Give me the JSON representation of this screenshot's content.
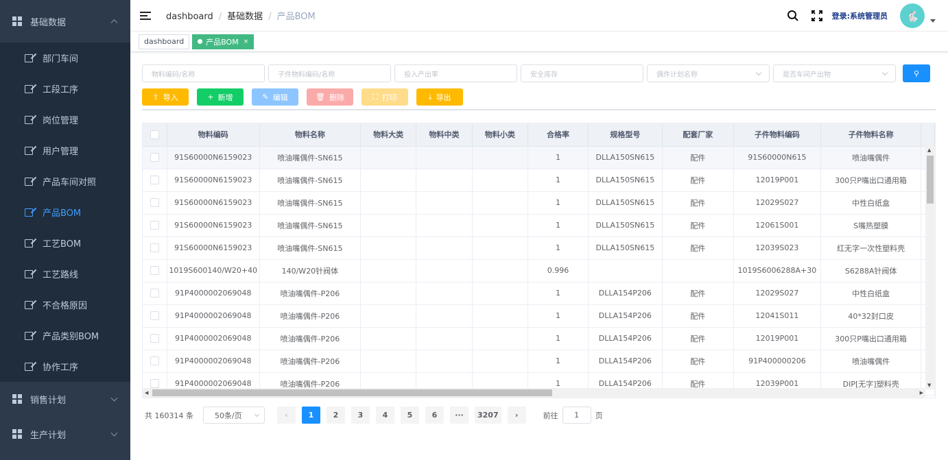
{
  "sidebar": {
    "groups": [
      {
        "label": "基础数据",
        "expanded": true
      },
      {
        "label": "销售计划"
      },
      {
        "label": "生产计划"
      }
    ],
    "items": [
      {
        "label": "部门车间"
      },
      {
        "label": "工段工序"
      },
      {
        "label": "岗位管理"
      },
      {
        "label": "用户管理"
      },
      {
        "label": "产品车间对照"
      },
      {
        "label": "产品BOM",
        "active": true
      },
      {
        "label": "工艺BOM"
      },
      {
        "label": "工艺路线"
      },
      {
        "label": "不合格原因"
      },
      {
        "label": "产品类别BOM"
      },
      {
        "label": "协作工序"
      }
    ]
  },
  "navbar": {
    "breadcrumb": [
      "dashboard",
      "基础数据",
      "产品BOM"
    ],
    "user_label": "登录:系统管理员"
  },
  "tags": [
    {
      "label": "dashboard"
    },
    {
      "label": "产品BOM",
      "active": true,
      "close": "×"
    }
  ],
  "filters": [
    {
      "placeholder": "物料编码/名称"
    },
    {
      "placeholder": "子件物料编码/名称"
    },
    {
      "placeholder": "投入产出率"
    },
    {
      "placeholder": "安全库存"
    },
    {
      "placeholder": "偶件计划名称",
      "select": true
    },
    {
      "placeholder": "是否车间产出物",
      "select": true
    }
  ],
  "actions": [
    {
      "label": "导入",
      "icon": "upload-icon",
      "color": "#ffba00",
      "glyph": "⇪"
    },
    {
      "label": "新增",
      "icon": "plus-icon",
      "color": "#13ce66",
      "glyph": "+"
    },
    {
      "label": "编辑",
      "icon": "edit-icon",
      "color": "#8cc5ff",
      "glyph": "✎"
    },
    {
      "label": "删除",
      "icon": "delete-icon",
      "color": "#fbaaaa",
      "glyph": "🗑"
    },
    {
      "label": "打印",
      "icon": "print-icon",
      "color": "#ffdc8a",
      "glyph": "⛶"
    },
    {
      "label": "导出",
      "icon": "download-icon",
      "color": "#ffba00",
      "glyph": "⤓"
    }
  ],
  "table": {
    "columns": [
      "物料编码",
      "物料名称",
      "物料大类",
      "物料中类",
      "物料小类",
      "合格率",
      "规格型号",
      "配套厂家",
      "子件物料编码",
      "子件物料名称"
    ],
    "rows": [
      [
        "91S60000N6159023",
        "喷油嘴偶件-SN615",
        "",
        "",
        "",
        "1",
        "DLLA150SN615",
        "配件",
        "91S60000N615",
        "喷油嘴偶件"
      ],
      [
        "91S60000N6159023",
        "喷油嘴偶件-SN615",
        "",
        "",
        "",
        "1",
        "DLLA150SN615",
        "配件",
        "12019P001",
        "300只P嘴出口通用箱"
      ],
      [
        "91S60000N6159023",
        "喷油嘴偶件-SN615",
        "",
        "",
        "",
        "1",
        "DLLA150SN615",
        "配件",
        "12029S027",
        "中性白纸盒"
      ],
      [
        "91S60000N6159023",
        "喷油嘴偶件-SN615",
        "",
        "",
        "",
        "1",
        "DLLA150SN615",
        "配件",
        "12061S001",
        "S嘴热塑膜"
      ],
      [
        "91S60000N6159023",
        "喷油嘴偶件-SN615",
        "",
        "",
        "",
        "1",
        "DLLA150SN615",
        "配件",
        "12039S023",
        "红无字一次性塑料壳"
      ],
      [
        "1019S600140/W20+40",
        "140/W20针阀体",
        "",
        "",
        "",
        "0.996",
        "",
        "",
        "1019S6006288A+30",
        "S6288A针阀体"
      ],
      [
        "91P4000002069048",
        "喷油嘴偶件-P206",
        "",
        "",
        "",
        "1",
        "DLLA154P206",
        "配件",
        "12029S027",
        "中性白纸盒"
      ],
      [
        "91P4000002069048",
        "喷油嘴偶件-P206",
        "",
        "",
        "",
        "1",
        "DLLA154P206",
        "配件",
        "12041S011",
        "40*32封口皮"
      ],
      [
        "91P4000002069048",
        "喷油嘴偶件-P206",
        "",
        "",
        "",
        "1",
        "DLLA154P206",
        "配件",
        "12019P001",
        "300只P嘴出口通用箱"
      ],
      [
        "91P4000002069048",
        "喷油嘴偶件-P206",
        "",
        "",
        "",
        "1",
        "DLLA154P206",
        "配件",
        "91P400000206",
        "喷油嘴偶件"
      ],
      [
        "91P4000002069048",
        "喷油嘴偶件-P206",
        "",
        "",
        "",
        "1",
        "DLLA154P206",
        "配件",
        "12039P001",
        "DIP[无字]塑料壳"
      ]
    ]
  },
  "pagination": {
    "total": "共 160314 条",
    "page_size": "50条/页",
    "pages": [
      "1",
      "2",
      "3",
      "4",
      "5",
      "6",
      "···",
      "3207"
    ],
    "current": "1",
    "goto_label": "前往",
    "goto_value": "1",
    "page_unit": "页"
  }
}
